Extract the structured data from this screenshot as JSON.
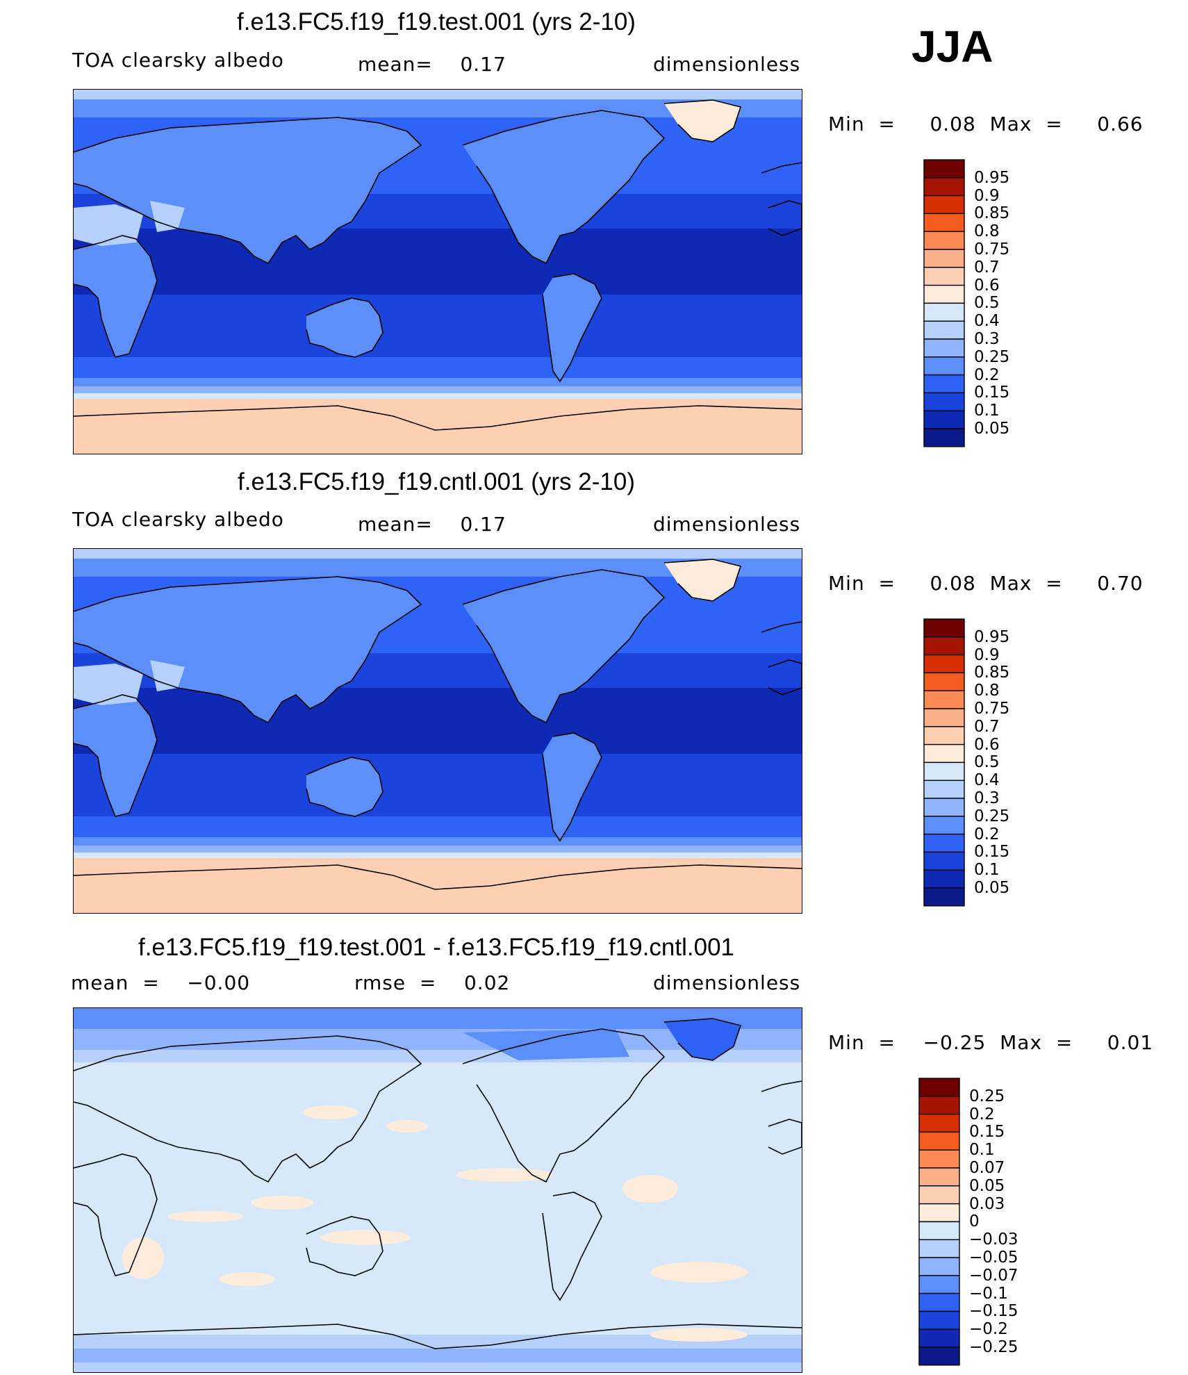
{
  "season": "JJA",
  "panels": [
    {
      "id": "test",
      "title": "f.e13.FC5.f19_f19.test.001 (yrs 2-10)",
      "left_label": "TOA clearsky albedo",
      "center_label": "mean=    0.17",
      "right_label": "dimensionless",
      "minmax": "Min  =     0.08  Max  =     0.66",
      "palette": "full",
      "colorbar_labels": [
        "0.95",
        "0.9",
        "0.85",
        "0.8",
        "0.75",
        "0.7",
        "0.6",
        "0.5",
        "0.4",
        "0.3",
        "0.25",
        "0.2",
        "0.15",
        "0.1",
        "0.05"
      ]
    },
    {
      "id": "cntl",
      "title": "f.e13.FC5.f19_f19.cntl.001 (yrs 2-10)",
      "left_label": "TOA clearsky albedo",
      "center_label": "mean=    0.17",
      "right_label": "dimensionless",
      "minmax": "Min  =     0.08  Max  =     0.70",
      "palette": "full",
      "colorbar_labels": [
        "0.95",
        "0.9",
        "0.85",
        "0.8",
        "0.75",
        "0.7",
        "0.6",
        "0.5",
        "0.4",
        "0.3",
        "0.25",
        "0.2",
        "0.15",
        "0.1",
        "0.05"
      ]
    },
    {
      "id": "diff",
      "title": "f.e13.FC5.f19_f19.test.001 - f.e13.FC5.f19_f19.cntl.001",
      "left_label": "mean  =    −0.00",
      "center_label": "rmse  =    0.02",
      "right_label": "dimensionless",
      "minmax": "Min  =    −0.25  Max  =     0.01",
      "palette": "full",
      "colorbar_labels": [
        "0.25",
        "0.2",
        "0.15",
        "0.1",
        "0.07",
        "0.05",
        "0.03",
        "0",
        "−0.03",
        "−0.05",
        "−0.07",
        "−0.1",
        "−0.15",
        "−0.2",
        "−0.25"
      ]
    }
  ],
  "colors": {
    "palette": [
      "#6e0000",
      "#a41400",
      "#d63000",
      "#f55d20",
      "#fb8a55",
      "#fcb08a",
      "#fdd0b3",
      "#fdebdc",
      "#d6e8fa",
      "#b5d0fb",
      "#8fb4fb",
      "#5d8ffb",
      "#2f63f5",
      "#1a44dc",
      "#0e2ab4",
      "#0a1a8a"
    ],
    "land_outline": "#000000"
  },
  "chart_data": {
    "type": "heatmap",
    "variable": "TOA clearsky albedo",
    "units": "dimensionless",
    "season": "JJA",
    "maps": [
      {
        "case": "f.e13.FC5.f19_f19.test.001 (yrs 2-10)",
        "mean": 0.17,
        "min": 0.08,
        "max": 0.66,
        "contour_levels": [
          0.05,
          0.1,
          0.15,
          0.2,
          0.25,
          0.3,
          0.4,
          0.5,
          0.6,
          0.7,
          0.75,
          0.8,
          0.85,
          0.9,
          0.95
        ]
      },
      {
        "case": "f.e13.FC5.f19_f19.cntl.001 (yrs 2-10)",
        "mean": 0.17,
        "min": 0.08,
        "max": 0.7,
        "contour_levels": [
          0.05,
          0.1,
          0.15,
          0.2,
          0.25,
          0.3,
          0.4,
          0.5,
          0.6,
          0.7,
          0.75,
          0.8,
          0.85,
          0.9,
          0.95
        ]
      },
      {
        "case": "f.e13.FC5.f19_f19.test.001 - f.e13.FC5.f19_f19.cntl.001",
        "mean": -0.0,
        "rmse": 0.02,
        "min": -0.25,
        "max": 0.01,
        "contour_levels": [
          -0.25,
          -0.2,
          -0.15,
          -0.1,
          -0.07,
          -0.05,
          -0.03,
          0,
          0.03,
          0.05,
          0.07,
          0.1,
          0.15,
          0.2,
          0.25
        ]
      }
    ]
  }
}
